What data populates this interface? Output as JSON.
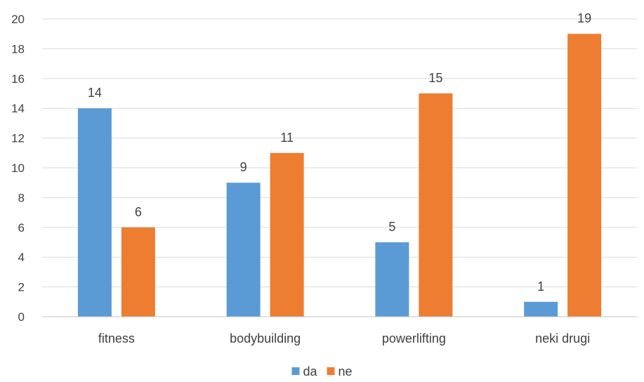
{
  "chart_data": {
    "type": "bar",
    "categories": [
      "fitness",
      "bodybuilding",
      "powerlifting",
      "neki drugi"
    ],
    "series": [
      {
        "name": "da",
        "values": [
          14,
          9,
          5,
          1
        ],
        "color": "#5b9bd5"
      },
      {
        "name": "ne",
        "values": [
          6,
          11,
          15,
          19
        ],
        "color": "#ed7d31"
      }
    ],
    "ylim": [
      0,
      20
    ],
    "yticks": [
      0,
      2,
      4,
      6,
      8,
      10,
      12,
      14,
      16,
      18,
      20
    ],
    "grid": true,
    "data_labels": true,
    "legend_position": "bottom"
  }
}
